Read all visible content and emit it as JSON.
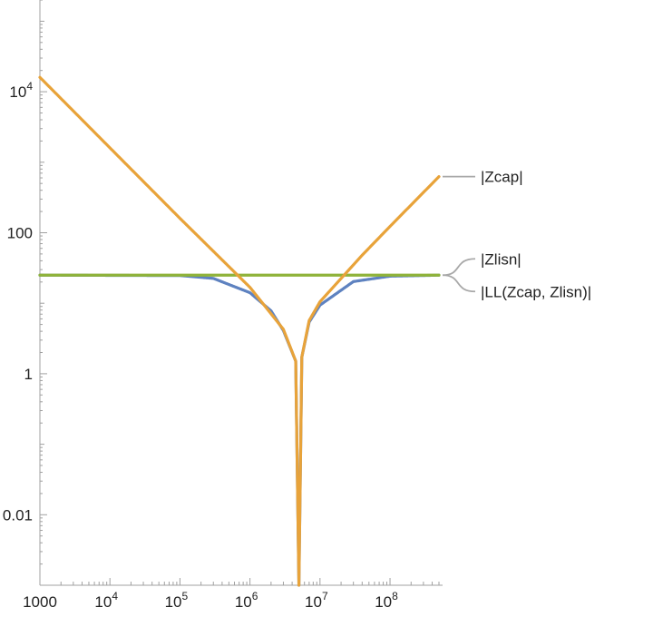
{
  "chart_data": {
    "type": "line",
    "title": "",
    "xlabel": "",
    "ylabel": "",
    "x_scale": "log",
    "y_scale": "log",
    "xlim": [
      1000,
      500000000
    ],
    "ylim": [
      0.001,
      200000
    ],
    "grid": false,
    "x_ticks": [
      {
        "value": 1000,
        "base": "1000",
        "exp": ""
      },
      {
        "value": 10000,
        "base": "10",
        "exp": "4"
      },
      {
        "value": 100000,
        "base": "10",
        "exp": "5"
      },
      {
        "value": 1000000,
        "base": "10",
        "exp": "6"
      },
      {
        "value": 10000000,
        "base": "10",
        "exp": "7"
      },
      {
        "value": 100000000,
        "base": "10",
        "exp": "8"
      }
    ],
    "y_ticks": [
      {
        "value": 0.01,
        "base": "0.01",
        "exp": ""
      },
      {
        "value": 1,
        "base": "1",
        "exp": ""
      },
      {
        "value": 100,
        "base": "100",
        "exp": ""
      },
      {
        "value": 10000,
        "base": "10",
        "exp": "4"
      }
    ],
    "resonance_frequency": 5000000,
    "series": [
      {
        "name": "|Zcap|",
        "color": "#e8a33a",
        "x": [
          1000,
          10000,
          100000,
          1000000,
          3000000,
          4500000,
          5000000,
          5500000,
          7000000,
          10000000,
          40000000,
          100000000,
          500000000
        ],
        "y": [
          16000,
          1600,
          160,
          16.8,
          4.27,
          1.51,
          0.001,
          1.72,
          5.68,
          10.5,
          48,
          123,
          625
        ]
      },
      {
        "name": "|Zlisn|",
        "color": "#8fb33a",
        "x": [
          1000,
          500000000
        ],
        "y": [
          25,
          25
        ]
      },
      {
        "name": "|LL(Zcap, Zlisn)|",
        "color": "#5e82c0",
        "x": [
          1000,
          100000,
          300000,
          1000000,
          2000000,
          3000000,
          4500000,
          5000000,
          5500000,
          7000000,
          10000000,
          30000000,
          100000000,
          500000000
        ],
        "y": [
          25,
          24.7,
          22.5,
          14.1,
          7.8,
          4.1,
          1.51,
          0.001,
          1.72,
          5.4,
          9.4,
          20.3,
          24.2,
          25
        ]
      }
    ],
    "legend": [
      {
        "label": "|Zcap|",
        "series": "|Zcap|"
      },
      {
        "label": "|Zlisn|",
        "series": "|Zlisn|"
      },
      {
        "label": "|LL(Zcap, Zlisn)|",
        "series": "|LL(Zcap, Zlisn)|"
      }
    ]
  }
}
